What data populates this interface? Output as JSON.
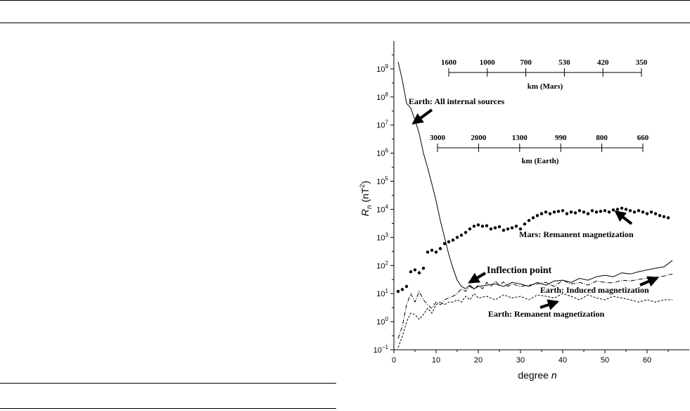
{
  "chart_data": {
    "type": "line",
    "xlabel": "degree",
    "xlabel_var": "n",
    "ylabel": "R",
    "ylabel_sub": "n",
    "ylabel_unit": "(nT",
    "ylabel_unit_sup": "2",
    "ylabel_unit_close": ")",
    "xlim": [
      0,
      70
    ],
    "ylim_log10": [
      -1,
      10
    ],
    "y_scale": "log",
    "x_ticks": [
      0,
      10,
      20,
      30,
      40,
      50,
      60
    ],
    "x_tick_labels": [
      "0",
      "10",
      "20",
      "30",
      "40",
      "50",
      "60"
    ],
    "y_ticks_exp": [
      -1,
      0,
      1,
      2,
      3,
      4,
      5,
      6,
      7,
      8,
      9
    ],
    "y_tick_base": "10",
    "y_tick_exps": [
      "−1",
      "0",
      "1",
      "2",
      "3",
      "4",
      "5",
      "6",
      "7",
      "8",
      "9"
    ],
    "series": [
      {
        "key": "earth_internal",
        "style": "solid",
        "x": [
          1,
          2,
          3,
          4,
          5,
          6,
          7,
          8,
          9,
          10,
          11,
          12,
          13,
          14,
          15,
          16,
          17,
          18,
          19,
          20,
          22,
          24,
          26,
          28,
          30,
          32,
          34,
          36,
          38,
          40,
          42,
          44,
          46,
          48,
          50,
          52,
          54,
          56,
          58,
          60,
          62,
          64,
          66
        ],
        "y": [
          1800000000.0,
          400000000.0,
          60000000.0,
          40000000.0,
          15000000.0,
          5000000.0,
          1000000.0,
          300000.0,
          80000.0,
          20000.0,
          4000.0,
          1000.0,
          250.0,
          80,
          30,
          18,
          15,
          20,
          15,
          18,
          20,
          22,
          18,
          25,
          22,
          18,
          25,
          20,
          28,
          30,
          25,
          35,
          30,
          40,
          45,
          40,
          55,
          50,
          60,
          70,
          80,
          90,
          150
        ]
      },
      {
        "key": "mars_remanent",
        "style": "dotted",
        "x": [
          1,
          2,
          3,
          4,
          5,
          6,
          7,
          8,
          9,
          10,
          11,
          12,
          13,
          14,
          15,
          16,
          17,
          18,
          19,
          20,
          21,
          22,
          23,
          24,
          25,
          26,
          27,
          28,
          29,
          30,
          31,
          32,
          33,
          34,
          35,
          36,
          37,
          38,
          39,
          40,
          41,
          42,
          43,
          44,
          45,
          46,
          47,
          48,
          49,
          50,
          51,
          52,
          53,
          54,
          55,
          56,
          57,
          58,
          59,
          60,
          61,
          62,
          63,
          64,
          65
        ],
        "y": [
          12,
          14,
          18,
          60,
          70,
          55,
          80,
          300,
          350,
          300,
          400,
          600,
          700,
          800,
          1000,
          1200,
          1500,
          2000,
          2500,
          2800,
          2500,
          2600,
          2000,
          2200,
          2400,
          1800,
          2000,
          2200,
          2500,
          2000,
          3000,
          4000,
          5000,
          6000,
          7000,
          8000,
          7000,
          8000,
          8500,
          9000,
          7000,
          8000,
          7500,
          9000,
          8000,
          7000,
          9000,
          8000,
          8500,
          9000,
          8000,
          9500,
          10000,
          11000,
          10000,
          9000,
          8000,
          9000,
          8000,
          7000,
          8000,
          7000,
          6000,
          5500,
          5000
        ]
      },
      {
        "key": "earth_induced",
        "style": "dashdot",
        "x": [
          1,
          2,
          3,
          4,
          5,
          6,
          7,
          8,
          9,
          10,
          11,
          12,
          13,
          14,
          15,
          16,
          17,
          18,
          19,
          20,
          21,
          22,
          23,
          24,
          25,
          26,
          27,
          28,
          29,
          30,
          32,
          34,
          36,
          38,
          40,
          42,
          44,
          46,
          48,
          50,
          52,
          54,
          56,
          58,
          60,
          62,
          64,
          66
        ],
        "y": [
          0.25,
          0.7,
          4,
          10,
          5,
          12,
          6,
          4,
          3,
          5,
          4,
          6,
          7,
          8,
          10,
          15,
          12,
          18,
          14,
          20,
          15,
          25,
          18,
          28,
          20,
          26,
          18,
          22,
          20,
          18,
          20,
          22,
          25,
          18,
          30,
          22,
          25,
          20,
          28,
          25,
          24,
          30,
          28,
          32,
          35,
          38,
          42,
          50
        ]
      },
      {
        "key": "earth_remanent",
        "style": "dashed",
        "x": [
          1,
          2,
          3,
          4,
          5,
          6,
          7,
          8,
          9,
          10,
          11,
          12,
          13,
          14,
          15,
          16,
          17,
          18,
          19,
          20,
          22,
          24,
          26,
          28,
          30,
          32,
          34,
          36,
          38,
          40,
          42,
          44,
          46,
          48,
          50,
          52,
          54,
          56,
          58,
          60,
          62,
          64,
          66
        ],
        "y": [
          0.12,
          0.3,
          1,
          2,
          1.8,
          1.2,
          1.8,
          3,
          2,
          4,
          5,
          4,
          5,
          5,
          6,
          5,
          8,
          6,
          10,
          7,
          8,
          6,
          9,
          7,
          8,
          6,
          9,
          8,
          7,
          10,
          8,
          6,
          9,
          7,
          6,
          8,
          7,
          6,
          5,
          6,
          5,
          6,
          6
        ]
      }
    ],
    "annotations": [
      {
        "key": "earth_all_internal",
        "text": "Earth: All internal sources"
      },
      {
        "key": "mars_remanent",
        "text": "Mars: Remanent magnetization"
      },
      {
        "key": "inflection",
        "text": "Inflection point"
      },
      {
        "key": "earth_induced",
        "text": "Earth: Induced magnetization"
      },
      {
        "key": "earth_remanent",
        "text": "Earth: Remanent magnetization"
      }
    ],
    "scale_mars": {
      "label": "km (Mars)",
      "ticks": [
        "1600",
        "1000",
        "700",
        "530",
        "420",
        "350"
      ]
    },
    "scale_earth": {
      "label": "km (Earth)",
      "ticks": [
        "3000",
        "2000",
        "1300",
        "990",
        "800",
        "660"
      ]
    }
  }
}
